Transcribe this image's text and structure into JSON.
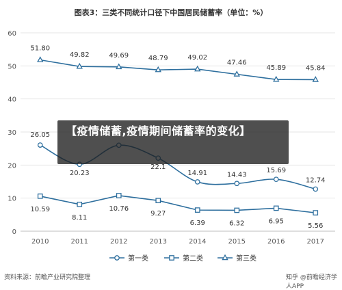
{
  "header": {
    "title": "图表3：三类不同统计口径下中国居民储蓄率（单位：%）"
  },
  "overlay": {
    "text": "【疫情储蓄,疫情期间储蓄率的变化】"
  },
  "footer": {
    "source": "资料来源：前瞻产业研究院整理",
    "credit": "知乎 @前瞻经济学人APP"
  },
  "colors": {
    "series1": "#2e6f9e",
    "series2": "#2e6f9e",
    "series3": "#2e6f9e",
    "grid": "#e6e6e6",
    "text": "#333333"
  },
  "chart_data": {
    "type": "line",
    "title": "图表3：三类不同统计口径下中国居民储蓄率（单位：%）",
    "categories": [
      "2010",
      "2011",
      "2012",
      "2013",
      "2014",
      "2015",
      "2016",
      "2017"
    ],
    "ylim": [
      0,
      60
    ],
    "yticks": [
      0,
      10,
      20,
      30,
      40,
      50,
      60
    ],
    "grid": true,
    "legend_position": "bottom",
    "series": [
      {
        "name": "第一类",
        "marker": "circle",
        "smooth": true,
        "values": [
          26.05,
          20.23,
          26.0,
          22.1,
          14.91,
          14.43,
          15.69,
          12.74
        ],
        "labels": [
          "26.05",
          "20.23",
          "",
          "22.1",
          "14.91",
          "14.43",
          "15.69",
          "12.74"
        ]
      },
      {
        "name": "第二类",
        "marker": "square",
        "smooth": false,
        "values": [
          10.59,
          8.11,
          10.76,
          9.27,
          6.39,
          6.32,
          6.95,
          5.56
        ],
        "labels": [
          "10.59",
          "8.11",
          "10.76",
          "9.27",
          "6.39",
          "6.32",
          "6.95",
          "5.56"
        ]
      },
      {
        "name": "第三类",
        "marker": "triangle",
        "smooth": false,
        "values": [
          51.8,
          49.82,
          49.69,
          48.79,
          49.02,
          47.46,
          45.89,
          45.84
        ],
        "labels": [
          "51.80",
          "49.82",
          "49.69",
          "48.79",
          "49.02",
          "47.46",
          "45.89",
          "45.84"
        ]
      }
    ]
  }
}
